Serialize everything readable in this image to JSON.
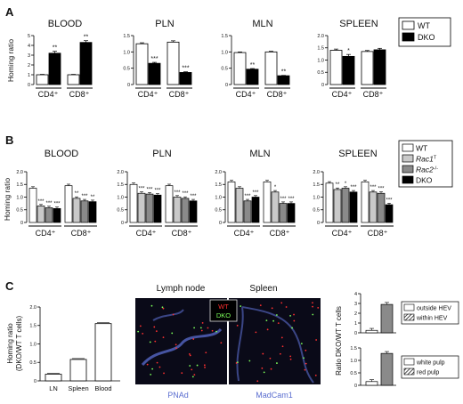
{
  "panel_labels": [
    "A",
    "B",
    "C"
  ],
  "colors": {
    "white": "#ffffff",
    "black": "#000000",
    "light_gray": "#c9c9c9",
    "mid_gray": "#8a8a8a",
    "micro_bg": "#0a0a18",
    "pnad": "#5b6ed0",
    "wt_red": "#ff3030",
    "dko_green": "#7cff5a"
  },
  "panelA": {
    "ylabel": "Homing ratio",
    "legend": [
      {
        "name": "WT",
        "color": "#ffffff"
      },
      {
        "name": "DKO",
        "color": "#000000"
      }
    ],
    "charts": [
      {
        "title": "BLOOD",
        "ylim": [
          0,
          5
        ],
        "ticks": [
          "0",
          "1",
          "2",
          "3",
          "4",
          "5"
        ],
        "groups": [
          "CD4⁺",
          "CD8⁺"
        ],
        "values": [
          [
            1.0,
            3.2
          ],
          [
            1.0,
            4.3
          ]
        ],
        "errors": [
          [
            0.04,
            0.2
          ],
          [
            0.04,
            0.18
          ]
        ],
        "stars": [
          [
            "",
            "**"
          ],
          [
            "",
            "**"
          ]
        ]
      },
      {
        "title": "PLN",
        "ylim": [
          0,
          1.5
        ],
        "ticks": [
          "0",
          "0.5",
          "1.0",
          "1.5"
        ],
        "groups": [
          "CD4⁺",
          "CD8⁺"
        ],
        "values": [
          [
            1.25,
            0.65
          ],
          [
            1.3,
            0.37
          ]
        ],
        "errors": [
          [
            0.03,
            0.03
          ],
          [
            0.04,
            0.02
          ]
        ],
        "stars": [
          [
            "",
            "***"
          ],
          [
            "",
            "***"
          ]
        ]
      },
      {
        "title": "MLN",
        "ylim": [
          0,
          1.5
        ],
        "ticks": [
          "0",
          "0.5",
          "1.0",
          "1.5"
        ],
        "groups": [
          "CD4⁺",
          "CD8⁺"
        ],
        "values": [
          [
            0.98,
            0.47
          ],
          [
            1.0,
            0.27
          ]
        ],
        "errors": [
          [
            0.02,
            0.02
          ],
          [
            0.02,
            0.01
          ]
        ],
        "stars": [
          [
            "",
            "**"
          ],
          [
            "",
            "**"
          ]
        ]
      },
      {
        "title": "SPLEEN",
        "ylim": [
          0,
          2
        ],
        "ticks": [
          "0",
          "0.5",
          "1.0",
          "1.5",
          "2.0"
        ],
        "groups": [
          "CD4⁺",
          "CD8⁺"
        ],
        "values": [
          [
            1.4,
            1.15
          ],
          [
            1.35,
            1.42
          ]
        ],
        "errors": [
          [
            0.05,
            0.08
          ],
          [
            0.04,
            0.06
          ]
        ],
        "stars": [
          [
            "",
            "*"
          ],
          [
            "",
            ""
          ]
        ]
      }
    ]
  },
  "panelB": {
    "ylabel": "Homing ratio",
    "legend": [
      {
        "name": "WT",
        "sup": "",
        "color": "#ffffff"
      },
      {
        "name": "Rac1",
        "sup": "T",
        "color": "#c9c9c9"
      },
      {
        "name": "Rac2",
        "sup": "-/-",
        "color": "#8a8a8a"
      },
      {
        "name": "DKO",
        "sup": "",
        "color": "#000000"
      }
    ],
    "charts": [
      {
        "title": "BLOOD",
        "ylim": [
          0,
          2
        ],
        "ticks": [
          "0",
          "0.5",
          "1.0",
          "1.5",
          "2.0"
        ],
        "groups": [
          "CD4⁺",
          "CD8⁺"
        ],
        "values": [
          [
            1.35,
            0.65,
            0.58,
            0.55
          ],
          [
            1.45,
            0.95,
            0.85,
            0.82
          ]
        ],
        "stars": [
          [
            "",
            "***",
            "***",
            "***"
          ],
          [
            "",
            "**",
            "***",
            "**"
          ]
        ]
      },
      {
        "title": "PLN",
        "ylim": [
          0,
          2
        ],
        "ticks": [
          "0",
          "0.5",
          "1.0",
          "1.5",
          "2.0"
        ],
        "groups": [
          "CD4⁺",
          "CD8⁺"
        ],
        "values": [
          [
            1.5,
            1.15,
            1.12,
            1.08
          ],
          [
            1.45,
            1.0,
            0.95,
            0.85
          ]
        ],
        "stars": [
          [
            "",
            "***",
            "***",
            "***"
          ],
          [
            "",
            "***",
            "***",
            "***"
          ]
        ]
      },
      {
        "title": "MLN",
        "ylim": [
          0,
          2
        ],
        "ticks": [
          "0",
          "0.5",
          "1.0",
          "1.5",
          "2.0"
        ],
        "groups": [
          "CD4⁺",
          "CD8⁺"
        ],
        "values": [
          [
            1.6,
            1.35,
            0.85,
            1.0
          ],
          [
            1.6,
            1.2,
            0.75,
            0.75
          ]
        ],
        "stars": [
          [
            "",
            "",
            "***",
            "***"
          ],
          [
            "",
            "*",
            "***",
            "***"
          ]
        ]
      },
      {
        "title": "SPLEEN",
        "ylim": [
          0,
          2
        ],
        "ticks": [
          "0",
          "0.5",
          "1.0",
          "1.5",
          "2.0"
        ],
        "groups": [
          "CD4⁺",
          "CD8⁺"
        ],
        "values": [
          [
            1.55,
            1.3,
            1.35,
            1.2
          ],
          [
            1.6,
            1.2,
            1.15,
            0.7
          ]
        ],
        "stars": [
          [
            "",
            "**",
            "*",
            "***"
          ],
          [
            "",
            "***",
            "***",
            "***"
          ]
        ]
      }
    ]
  },
  "panelC": {
    "left": {
      "ylabel_line1": "Homing ratio",
      "ylabel_line2": "(DKO/WT T cells)",
      "ylim": [
        0,
        2
      ],
      "ticks": [
        "0",
        "0.5",
        "1.0",
        "1.5",
        "2.0"
      ],
      "categories": [
        "LN",
        "Spleen",
        "Blood"
      ],
      "values": [
        0.18,
        0.58,
        1.55
      ]
    },
    "micro": {
      "title_left": "Lymph node",
      "title_right": "Spleen",
      "label_wt": "WT",
      "label_dko": "DKO",
      "stain_left": "PNAd",
      "stain_right": "MadCam1"
    },
    "right": {
      "ylabel": "Ratio DKO/WT T cells",
      "top": {
        "ylim": [
          0,
          4
        ],
        "ticks": [
          "0",
          "1",
          "2",
          "3",
          "4"
        ],
        "values": [
          0.25,
          2.9
        ],
        "legend": [
          "outside HEV",
          "within HEV"
        ]
      },
      "bottom": {
        "ylim": [
          0,
          1.5
        ],
        "ticks": [
          "0",
          "0.5",
          "1.0",
          "1.5"
        ],
        "values": [
          0.15,
          1.28
        ],
        "legend": [
          "white pulp",
          "red pulp"
        ]
      }
    }
  }
}
